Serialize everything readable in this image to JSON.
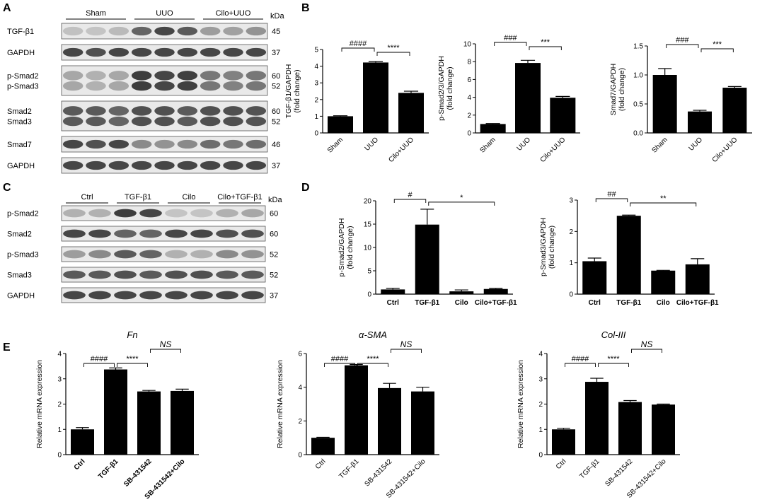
{
  "panel_letters": [
    "A",
    "B",
    "C",
    "D",
    "E"
  ],
  "blots": [
    {
      "panel": "A",
      "kda_label": "kDa",
      "groups": [
        {
          "label": "Sham",
          "lanes": 3
        },
        {
          "label": "UUO",
          "lanes": 3
        },
        {
          "label": "Cilo+UUO",
          "lanes": 3
        }
      ],
      "rows": [
        {
          "labels": [
            "TGF-β1"
          ],
          "kda": [
            "45"
          ],
          "intensities": [
            0.22,
            0.2,
            0.25,
            0.7,
            0.85,
            0.75,
            0.4,
            0.38,
            0.45
          ]
        },
        {
          "labels": [
            "GAPDH"
          ],
          "kda": [
            "37"
          ],
          "intensities": [
            0.85,
            0.8,
            0.85,
            0.85,
            0.85,
            0.85,
            0.85,
            0.85,
            0.85
          ]
        },
        {
          "labels": [
            "p-Smad2",
            "p-Smad3"
          ],
          "kda": [
            "60",
            "52"
          ],
          "intensities": [
            0.35,
            0.3,
            0.35,
            0.9,
            0.85,
            0.88,
            0.6,
            0.55,
            0.6
          ]
        },
        {
          "labels": [
            "Smad2",
            "Smad3"
          ],
          "kda": [
            "60",
            "52"
          ],
          "intensities": [
            0.75,
            0.75,
            0.7,
            0.8,
            0.8,
            0.75,
            0.8,
            0.8,
            0.78
          ]
        },
        {
          "labels": [
            "Smad7"
          ],
          "kda": [
            "46"
          ],
          "intensities": [
            0.85,
            0.8,
            0.85,
            0.5,
            0.45,
            0.5,
            0.65,
            0.6,
            0.65
          ]
        },
        {
          "labels": [
            "GAPDH"
          ],
          "kda": [
            "37"
          ],
          "intensities": [
            0.85,
            0.85,
            0.85,
            0.85,
            0.85,
            0.85,
            0.85,
            0.85,
            0.85
          ]
        }
      ]
    },
    {
      "panel": "C",
      "kda_label": "kDa",
      "groups": [
        {
          "label": "Ctrl",
          "lanes": 2
        },
        {
          "label": "TGF-β1",
          "lanes": 2
        },
        {
          "label": "Cilo",
          "lanes": 2
        },
        {
          "label": "Cilo+TGF-β1",
          "lanes": 2
        }
      ],
      "rows": [
        {
          "labels": [
            "p-Smad2"
          ],
          "kda": [
            "60"
          ],
          "intensities": [
            0.3,
            0.3,
            0.9,
            0.85,
            0.2,
            0.2,
            0.3,
            0.35
          ]
        },
        {
          "labels": [
            "Smad2"
          ],
          "kda": [
            "60"
          ],
          "intensities": [
            0.85,
            0.85,
            0.7,
            0.7,
            0.85,
            0.85,
            0.8,
            0.8
          ]
        },
        {
          "labels": [
            "p-Smad3"
          ],
          "kda": [
            "52"
          ],
          "intensities": [
            0.4,
            0.5,
            0.75,
            0.7,
            0.3,
            0.3,
            0.5,
            0.45
          ]
        },
        {
          "labels": [
            "Smad3"
          ],
          "kda": [
            "52"
          ],
          "intensities": [
            0.75,
            0.75,
            0.8,
            0.75,
            0.8,
            0.8,
            0.75,
            0.75
          ]
        },
        {
          "labels": [
            "GAPDH"
          ],
          "kda": [
            "37"
          ],
          "intensities": [
            0.85,
            0.85,
            0.85,
            0.85,
            0.85,
            0.85,
            0.85,
            0.85
          ]
        }
      ]
    }
  ],
  "chart_data": [
    {
      "panel": "B",
      "type": "bar",
      "title": "",
      "categories": [
        "Sham",
        "UUO",
        "Cilo+UUO"
      ],
      "values": [
        1.0,
        4.22,
        2.4
      ],
      "errors": [
        0.03,
        0.06,
        0.1
      ],
      "ylabel": "TGF-β1/GAPDH\n(fold change)",
      "ylim": [
        0,
        5
      ],
      "yticks": [
        0,
        1,
        2,
        3,
        4,
        5
      ],
      "significance": [
        {
          "from": 0,
          "to": 1,
          "label": "####"
        },
        {
          "from": 1,
          "to": 2,
          "label": "****"
        }
      ],
      "xtick_rotation": -45
    },
    {
      "panel": "B",
      "type": "bar",
      "title": "",
      "categories": [
        "Sham",
        "UUO",
        "Cilo+UUO"
      ],
      "values": [
        1.0,
        7.85,
        3.95
      ],
      "errors": [
        0.05,
        0.3,
        0.15
      ],
      "ylabel": "p-Smad2/3/GAPDH\n(fold change)",
      "ylim": [
        0,
        10
      ],
      "yticks": [
        0,
        2,
        4,
        6,
        8,
        10
      ],
      "significance": [
        {
          "from": 0,
          "to": 1,
          "label": "###"
        },
        {
          "from": 1,
          "to": 2,
          "label": "***"
        }
      ],
      "xtick_rotation": -45
    },
    {
      "panel": "B",
      "type": "bar",
      "title": "",
      "categories": [
        "Sham",
        "UUO",
        "Cilo+UUO"
      ],
      "values": [
        1.0,
        0.37,
        0.78
      ],
      "errors": [
        0.11,
        0.02,
        0.02
      ],
      "ylabel": "Smad7/GAPDH\n(fold change)",
      "ylim": [
        0,
        1.5
      ],
      "yticks": [
        0.0,
        0.5,
        1.0,
        1.5
      ],
      "significance": [
        {
          "from": 0,
          "to": 1,
          "label": "###"
        },
        {
          "from": 1,
          "to": 2,
          "label": "***"
        }
      ],
      "xtick_rotation": -45
    },
    {
      "panel": "D",
      "type": "bar",
      "title": "",
      "categories": [
        "Ctrl",
        "TGF-β1",
        "Cilo",
        "Cilo+TGF-β1"
      ],
      "values": [
        1.0,
        14.9,
        0.6,
        1.1
      ],
      "errors": [
        0.25,
        3.3,
        0.3,
        0.15
      ],
      "ylabel": "p-Smad2/GAPDH\n(fold change)",
      "ylim": [
        0,
        20
      ],
      "yticks": [
        0,
        5,
        10,
        15,
        20
      ],
      "significance": [
        {
          "from": 0,
          "to": 1,
          "label": "#"
        },
        {
          "from": 1,
          "to": 3,
          "label": "*"
        }
      ],
      "xtick_rotation": 0
    },
    {
      "panel": "D",
      "type": "bar",
      "title": "",
      "categories": [
        "Ctrl",
        "TGF-β1",
        "Cilo",
        "Cilo+TGF-β1"
      ],
      "values": [
        1.05,
        2.5,
        0.75,
        0.95
      ],
      "errors": [
        0.1,
        0.02,
        0.01,
        0.18
      ],
      "ylabel": "p-Smad3/GAPDH\n(fold change)",
      "ylim": [
        0,
        3
      ],
      "yticks": [
        0,
        1,
        2,
        3
      ],
      "significance": [
        {
          "from": 0,
          "to": 1,
          "label": "##"
        },
        {
          "from": 1,
          "to": 3,
          "label": "**"
        }
      ],
      "xtick_rotation": 0
    },
    {
      "panel": "E",
      "type": "bar",
      "title": "Fn",
      "categories": [
        "Ctrl",
        "TGF-β1",
        "SB-431542",
        "SB-431542+Cilo"
      ],
      "values": [
        1.0,
        3.37,
        2.5,
        2.52
      ],
      "errors": [
        0.07,
        0.06,
        0.04,
        0.07
      ],
      "ylabel": "Relative mRNA expression",
      "ylim": [
        0,
        4
      ],
      "yticks": [
        0,
        1,
        2,
        3,
        4
      ],
      "significance": [
        {
          "from": 0,
          "to": 1,
          "label": "####"
        },
        {
          "from": 1,
          "to": 2,
          "label": "****"
        },
        {
          "from": 2,
          "to": 3,
          "label": "NS"
        }
      ],
      "xtick_rotation": -45
    },
    {
      "panel": "E",
      "type": "bar",
      "title": "α-SMA",
      "categories": [
        "Ctrl",
        "TGF-β1",
        "SB-431542",
        "SB-431542+Cilo"
      ],
      "values": [
        1.0,
        5.3,
        3.95,
        3.75
      ],
      "errors": [
        0.03,
        0.05,
        0.28,
        0.25
      ],
      "ylabel": "Relative mRNA expression",
      "ylim": [
        0,
        6
      ],
      "yticks": [
        0,
        2,
        4,
        6
      ],
      "significance": [
        {
          "from": 0,
          "to": 1,
          "label": "####"
        },
        {
          "from": 1,
          "to": 2,
          "label": "****"
        },
        {
          "from": 2,
          "to": 3,
          "label": "NS"
        }
      ],
      "xtick_rotation": -45
    },
    {
      "panel": "E",
      "type": "bar",
      "title": "Col-III",
      "categories": [
        "Ctrl",
        "TGF-β1",
        "SB-431542",
        "SB-431542+Cilo"
      ],
      "values": [
        1.0,
        2.88,
        2.08,
        1.98
      ],
      "errors": [
        0.04,
        0.14,
        0.06,
        0.02
      ],
      "ylabel": "Relative mRNA expression",
      "ylim": [
        0,
        4
      ],
      "yticks": [
        0,
        1,
        2,
        3,
        4
      ],
      "significance": [
        {
          "from": 0,
          "to": 1,
          "label": "####"
        },
        {
          "from": 1,
          "to": 2,
          "label": "****"
        },
        {
          "from": 2,
          "to": 3,
          "label": "NS"
        }
      ],
      "xtick_rotation": -45
    }
  ]
}
